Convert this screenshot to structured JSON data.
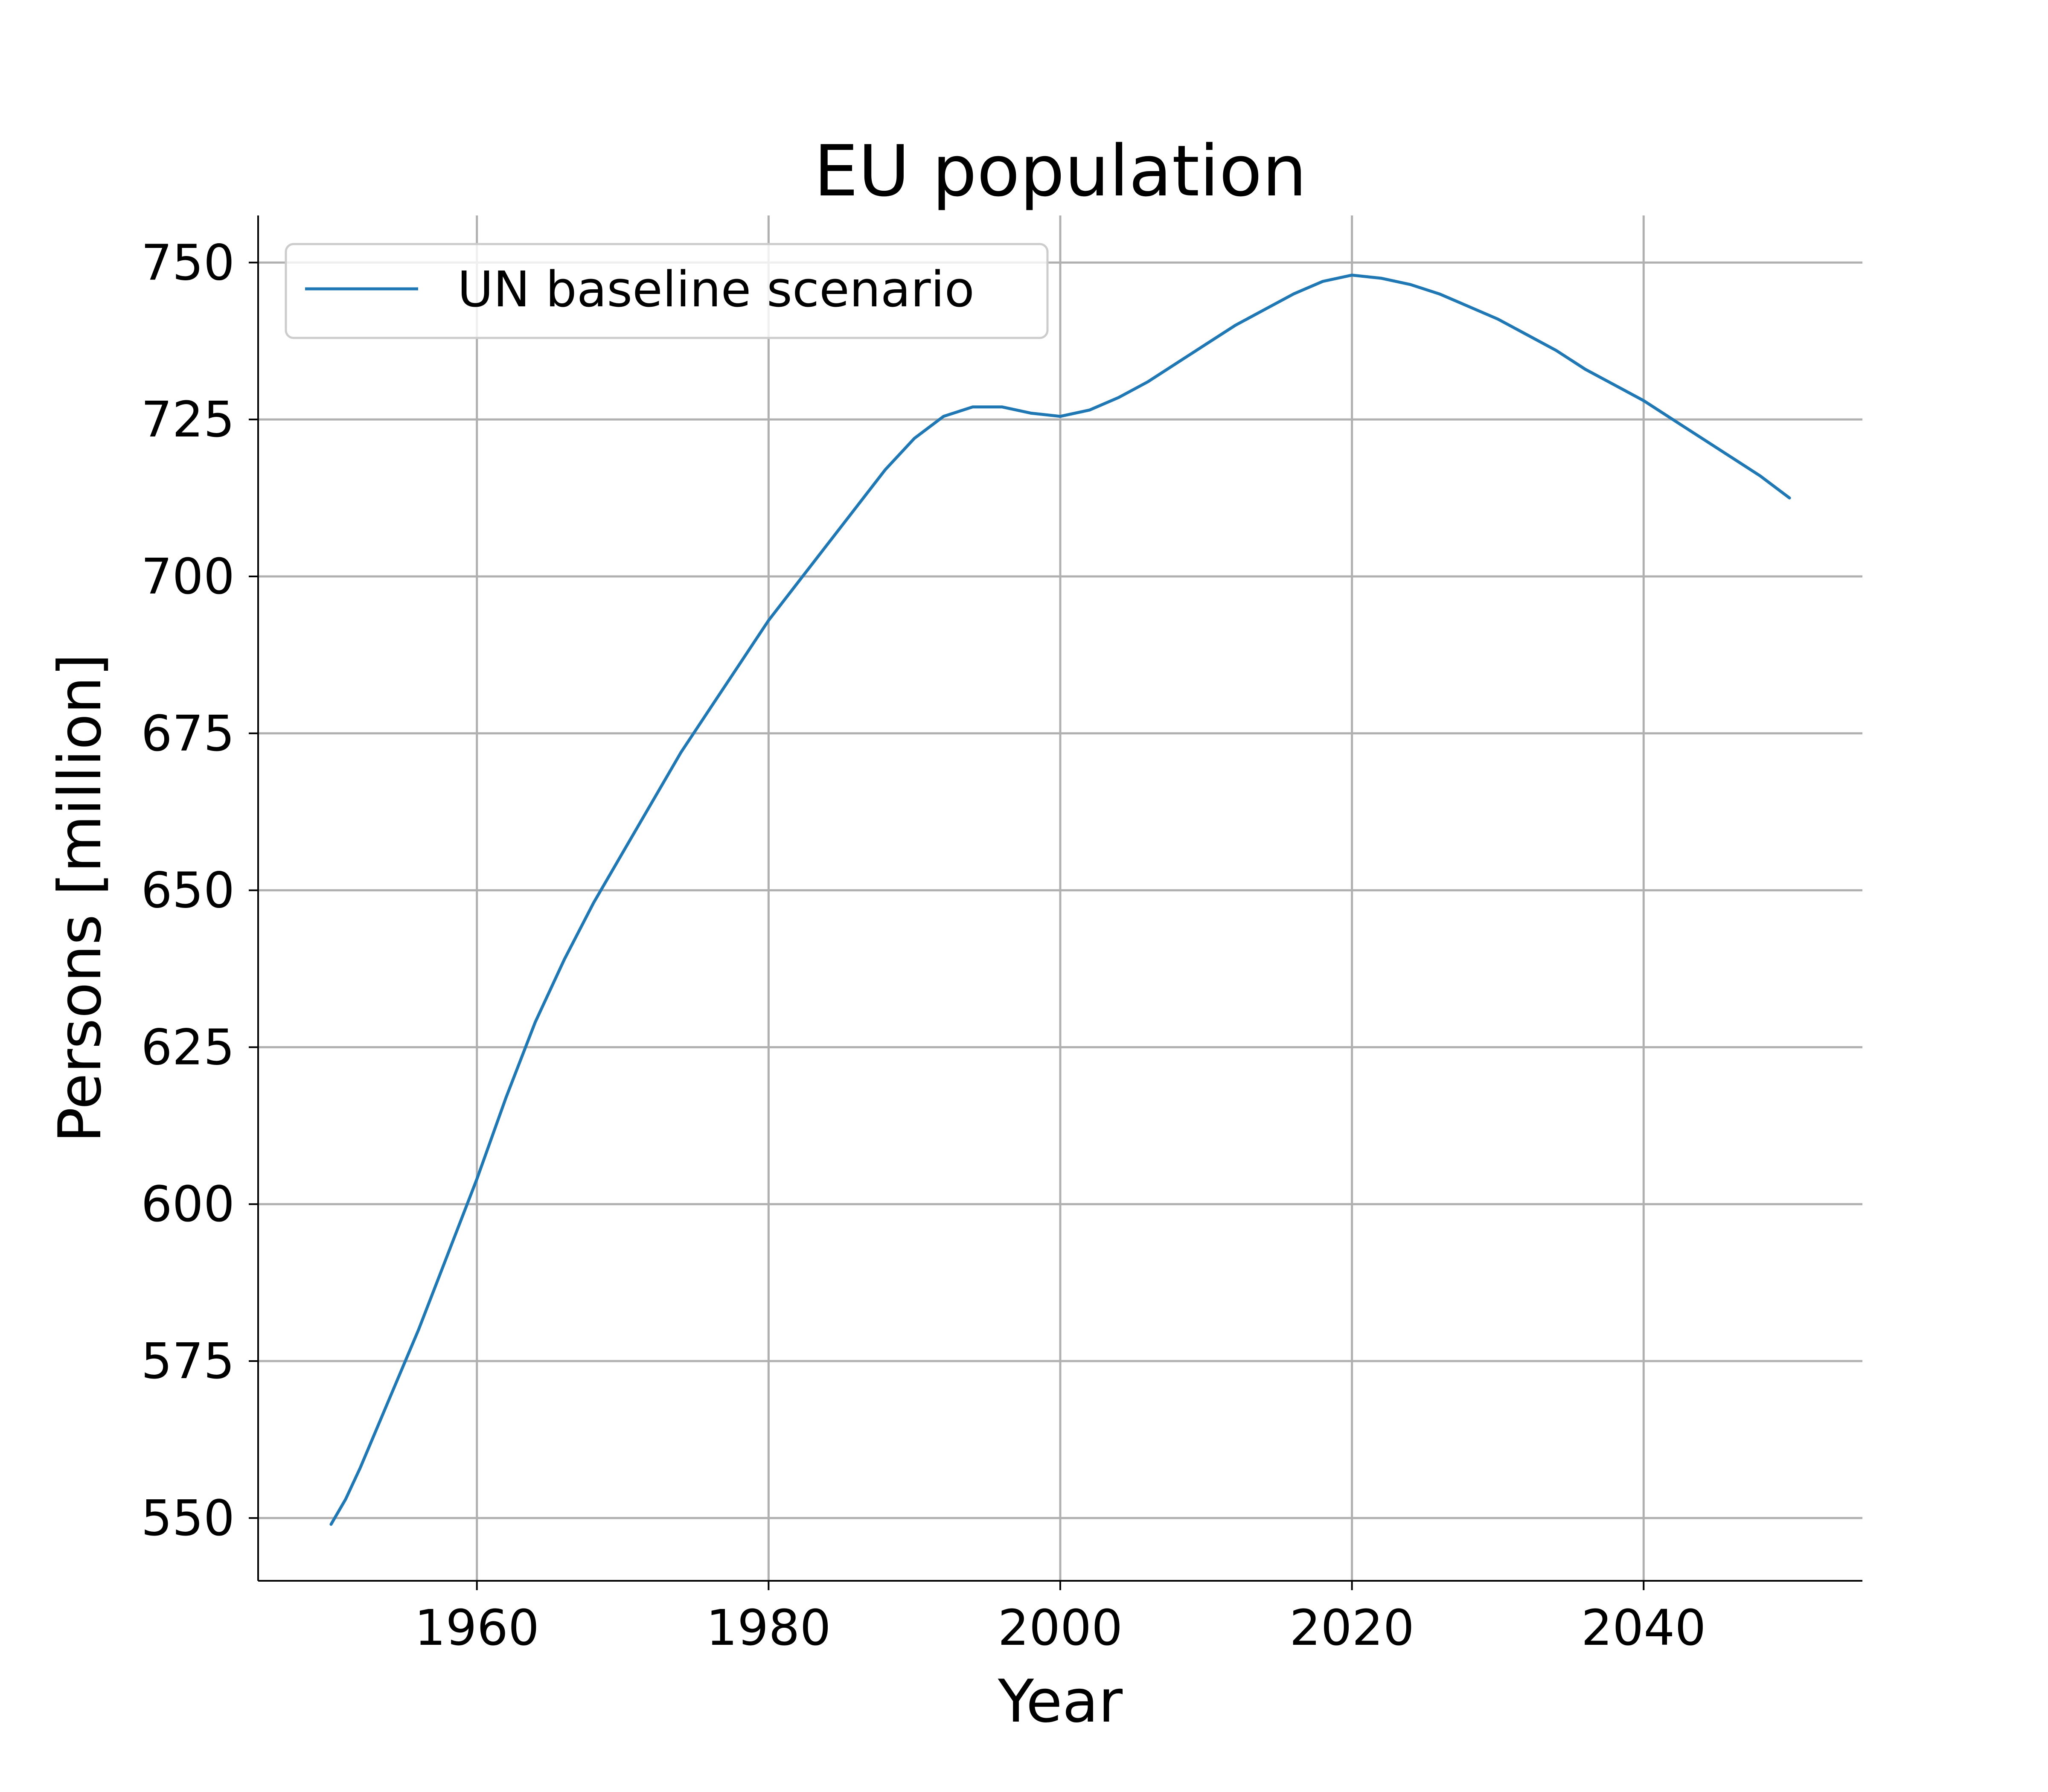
{
  "chart_data": {
    "type": "line",
    "title": "EU population",
    "xlabel": "Year",
    "ylabel": "Persons [million]",
    "xlim": [
      1945,
      2055
    ],
    "ylim": [
      540,
      757.5
    ],
    "xticks": [
      1960,
      1980,
      2000,
      2020,
      2040
    ],
    "yticks": [
      550,
      575,
      600,
      625,
      650,
      675,
      700,
      725,
      750
    ],
    "grid": true,
    "legend_position": "top-left",
    "series": [
      {
        "name": "UN baseline scenario",
        "color": "#1f77b4",
        "x": [
          1950,
          1951,
          1952,
          1954,
          1956,
          1958,
          1960,
          1962,
          1964,
          1966,
          1968,
          1970,
          1972,
          1974,
          1976,
          1978,
          1980,
          1982,
          1984,
          1986,
          1988,
          1990,
          1992,
          1994,
          1996,
          1998,
          2000,
          2002,
          2004,
          2006,
          2008,
          2010,
          2012,
          2014,
          2016,
          2018,
          2020,
          2022,
          2024,
          2026,
          2028,
          2030,
          2032,
          2034,
          2036,
          2038,
          2040,
          2042,
          2044,
          2046,
          2048,
          2050
        ],
        "y": [
          549,
          553,
          558,
          569,
          580,
          592,
          604,
          617,
          629,
          639,
          648,
          656,
          664,
          672,
          679,
          686,
          693,
          699,
          705,
          711,
          717,
          722,
          725.5,
          727,
          727,
          726,
          725.5,
          726.5,
          728.5,
          731,
          734,
          737,
          740,
          742.5,
          745,
          747,
          748,
          747.5,
          746.5,
          745,
          743,
          741,
          738.5,
          736,
          733,
          730.5,
          728,
          725,
          722,
          719,
          716,
          712.5
        ]
      }
    ]
  }
}
